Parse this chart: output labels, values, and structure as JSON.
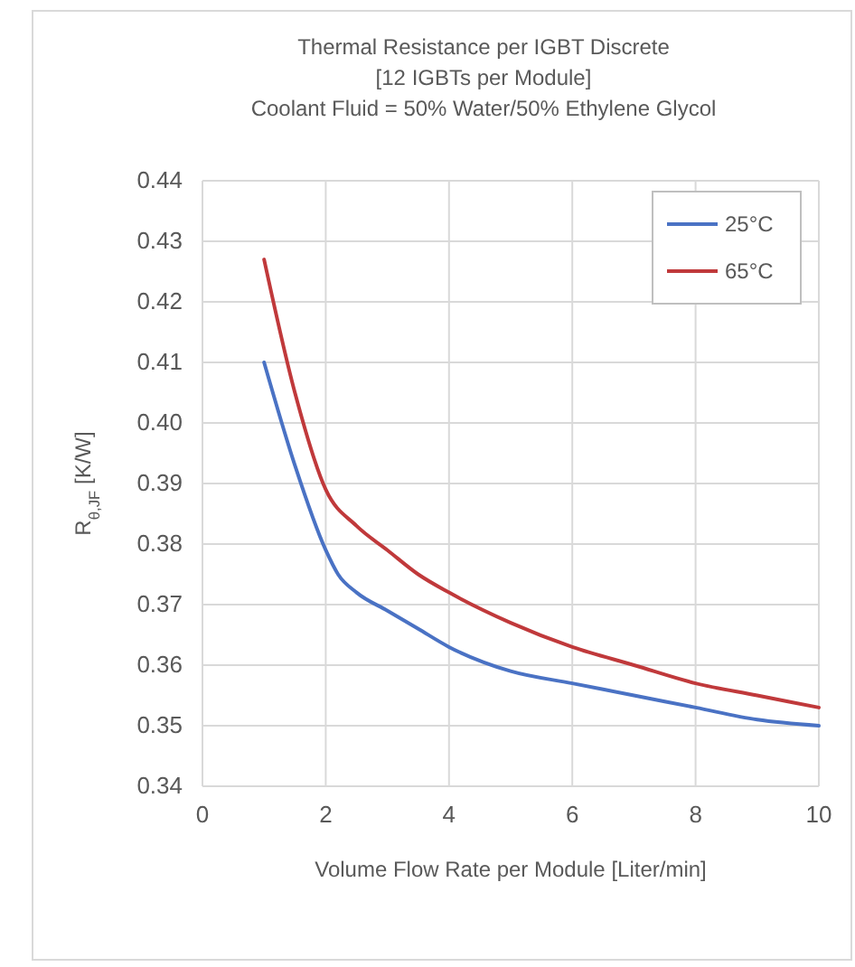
{
  "chart_data": {
    "type": "line",
    "title": "Thermal Resistance per IGBT Discrete",
    "subtitle": "[12 IGBTs per Module]\nCoolant Fluid = 50% Water/50% Ethylene Glycol",
    "xlabel": "Volume Flow Rate per Module [Liter/min]",
    "ylabel": "R$_{θ,JF}$ [K/W]",
    "xlim": [
      0,
      10
    ],
    "xticks": [
      0,
      2,
      4,
      6,
      8,
      10
    ],
    "ylim": [
      0.34,
      0.44
    ],
    "yticks": [
      {
        "value": 0.34,
        "label": "0.34"
      },
      {
        "value": 0.35,
        "label": "0.35"
      },
      {
        "value": 0.36,
        "label": "0.36"
      },
      {
        "value": 0.37,
        "label": "0.37"
      },
      {
        "value": 0.38,
        "label": "0.38"
      },
      {
        "value": 0.39,
        "label": "0.39"
      },
      {
        "value": 0.4,
        "label": "0.40"
      },
      {
        "value": 0.41,
        "label": "0.41"
      },
      {
        "value": 0.42,
        "label": "0.42"
      },
      {
        "value": 0.43,
        "label": "0.43"
      },
      {
        "value": 0.44,
        "label": "0.44"
      }
    ],
    "grid": true,
    "legend": "top right",
    "marker": "none",
    "line_style": "solid",
    "series": [
      {
        "name": "25°C",
        "color": "#4a72c4",
        "x": [
          1,
          1.5,
          2,
          2.2,
          2.5,
          3,
          3.5,
          4,
          5,
          6,
          7,
          8,
          9,
          10
        ],
        "values": [
          0.41,
          0.393,
          0.379,
          0.375,
          0.372,
          0.369,
          0.366,
          0.363,
          0.359,
          0.357,
          0.355,
          0.353,
          0.351,
          0.35
        ]
      },
      {
        "name": "65°C",
        "color": "#c0393b",
        "x": [
          1,
          1.5,
          2,
          2.5,
          3,
          3.5,
          4,
          5,
          6,
          7,
          8,
          9,
          10
        ],
        "values": [
          0.427,
          0.405,
          0.389,
          0.383,
          0.379,
          0.375,
          0.372,
          0.367,
          0.363,
          0.36,
          0.357,
          0.355,
          0.353
        ]
      }
    ]
  }
}
